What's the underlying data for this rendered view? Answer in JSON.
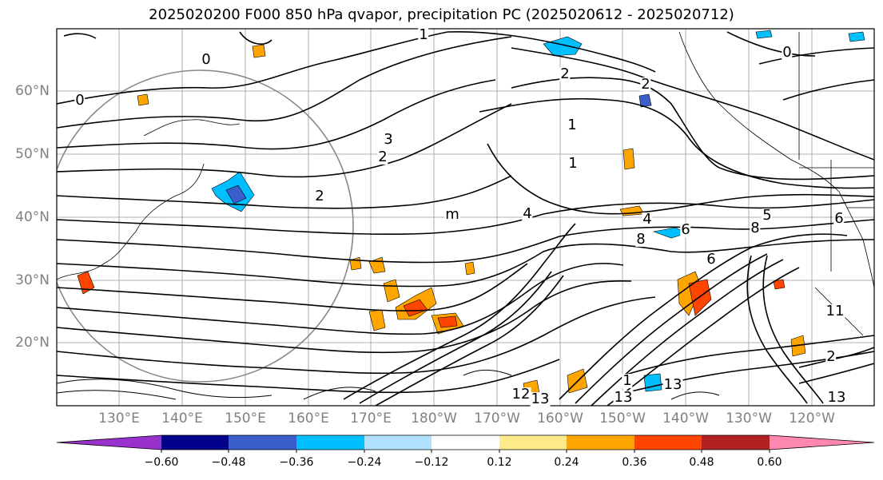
{
  "title": "2025020200 F000 850 hPa qvapor, precipitation PC (2025020612 - 2025020712)",
  "lat_labels": [
    "60°N",
    "50°N",
    "40°N",
    "30°N",
    "20°N"
  ],
  "lon_labels": [
    "130°E",
    "140°E",
    "150°E",
    "160°E",
    "170°E",
    "180°W",
    "170°W",
    "160°W",
    "150°W",
    "140°W",
    "130°W",
    "120°W"
  ],
  "contour_labels": [
    "0",
    "0",
    "0",
    "1",
    "1",
    "1",
    "2",
    "2",
    "2",
    "2",
    "2",
    "3",
    "4",
    "4",
    "6",
    "6",
    "6",
    "8",
    "8",
    "5",
    "m",
    "11",
    "1",
    "12",
    "13",
    "13",
    "13",
    "13"
  ],
  "colorbar": {
    "ticks": [
      "−0.60",
      "−0.48",
      "−0.36",
      "−0.24",
      "−0.12",
      "0.12",
      "0.24",
      "0.36",
      "0.48",
      "0.60"
    ],
    "colors": [
      "#9932cc",
      "#00008b",
      "#3a5fcd",
      "#00bfff",
      "#b0e2ff",
      "#ffffff",
      "#ffea8a",
      "#ffa500",
      "#ff4500",
      "#b22222",
      "#ff88b0"
    ]
  }
}
